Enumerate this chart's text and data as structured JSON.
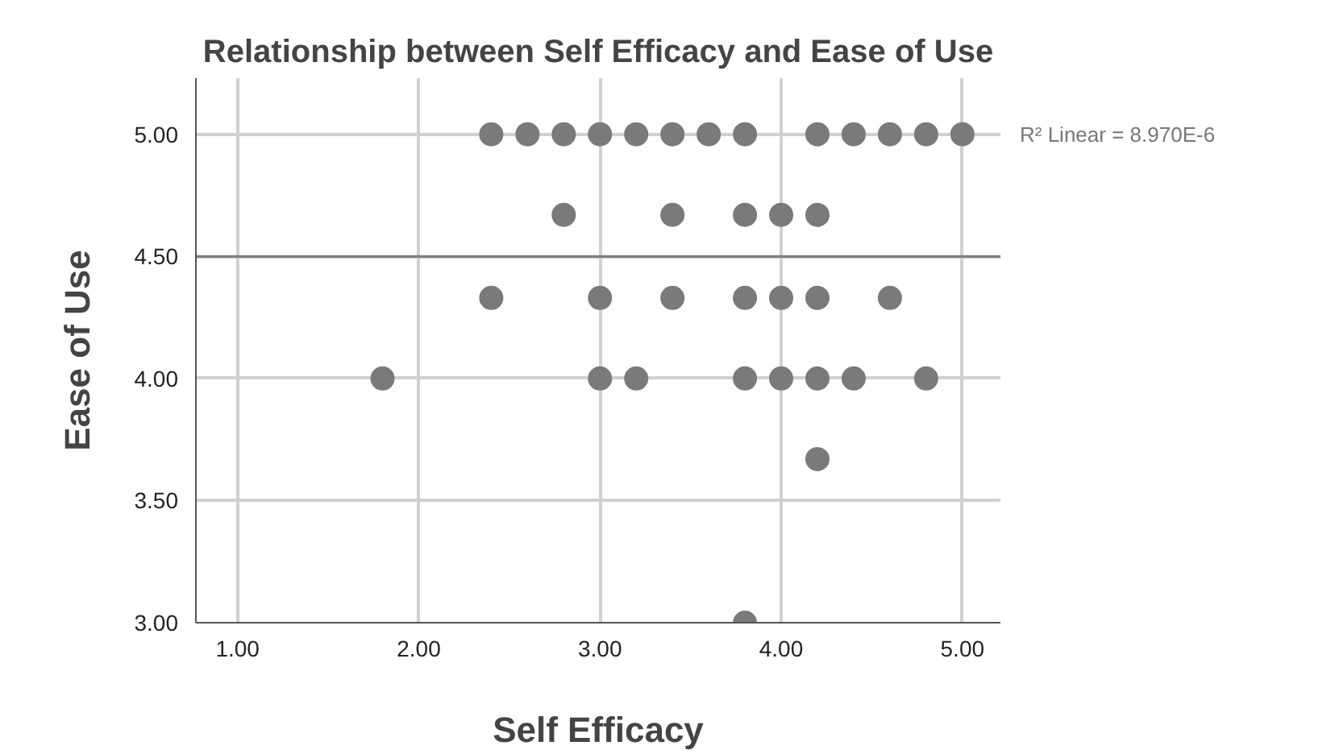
{
  "chart_data": {
    "type": "scatter",
    "title": "Relationship between Self Efficacy and Ease of Use",
    "xlabel": "Self Efficacy",
    "ylabel": "Ease of Use",
    "annotations": [
      "R² Linear = 8.970E-6"
    ],
    "series": [
      {
        "color": "#7a7a7a",
        "x": [
          2.4,
          2.6,
          2.8,
          3.0,
          3.2,
          3.4,
          3.6,
          3.8,
          4.2,
          4.4,
          4.6,
          4.8,
          5.0,
          2.8,
          3.4,
          3.8,
          4.0,
          4.2,
          2.4,
          3.0,
          3.4,
          3.8,
          4.0,
          4.2,
          4.6,
          1.8,
          3.0,
          3.2,
          3.8,
          4.0,
          4.2,
          4.4,
          4.8,
          4.2,
          3.8
        ],
        "values": [
          5,
          5,
          5,
          5,
          5,
          5,
          5,
          5,
          5,
          5,
          5,
          5,
          5,
          4.67,
          4.67,
          4.67,
          4.67,
          4.67,
          4.33,
          4.33,
          4.33,
          4.33,
          4.33,
          4.33,
          4.33,
          4,
          4,
          4,
          4,
          4,
          4,
          4,
          4,
          3.67,
          3
        ]
      },
      {
        "type": "line",
        "marker": "none",
        "color": "#7f7f7f",
        "x": [
          0.77,
          5.21
        ],
        "values": [
          4.5,
          4.5
        ]
      }
    ],
    "xlim": [
      0.77,
      5.21
    ],
    "ylim": [
      3.0,
      5.23
    ],
    "xticks": [
      {
        "value": 1,
        "label": "1.00"
      },
      {
        "value": 2,
        "label": "2.00"
      },
      {
        "value": 3,
        "label": "3.00"
      },
      {
        "value": 4,
        "label": "4.00"
      },
      {
        "value": 5,
        "label": "5.00"
      }
    ],
    "yticks": [
      {
        "value": 3,
        "label": "3.00"
      },
      {
        "value": 3.5,
        "label": "3.50"
      },
      {
        "value": 4,
        "label": "4.00"
      },
      {
        "value": 4.5,
        "label": "4.50"
      },
      {
        "value": 5,
        "label": "5.00"
      }
    ],
    "grid": true,
    "marker": "circle",
    "line_style": "solid"
  }
}
